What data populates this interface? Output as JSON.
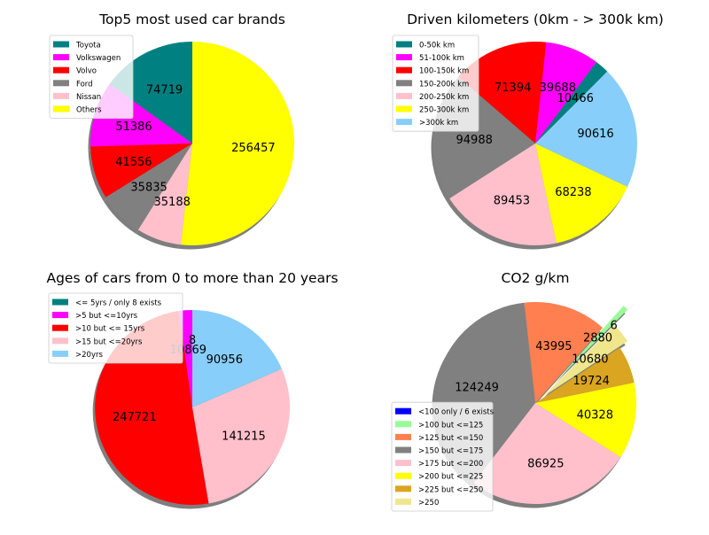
{
  "chart_data": [
    {
      "type": "pie",
      "title": "Top5 most used car brands",
      "categories": [
        "Toyota",
        "Volkswagen",
        "Volvo",
        "Ford",
        "Nissan",
        "Others"
      ],
      "values": [
        74719,
        51386,
        41556,
        35835,
        35188,
        256457
      ],
      "value_labels": [
        "74719",
        "51386",
        "41556",
        "35835",
        "35188",
        "256457"
      ],
      "colors": [
        "#008080",
        "#ff00ff",
        "#ff0000",
        "#808080",
        "#ffc0cb",
        "#ffff00"
      ],
      "start_angle_deg": 90,
      "shadow": true,
      "legend_position": "upper left"
    },
    {
      "type": "pie",
      "title": "Driven kilometers (0km - > 300k km)",
      "categories": [
        "0-50k km",
        "51-100k km",
        "100-150k km",
        "150-200k km",
        "200-250k km",
        "250-300k km",
        ">300k km"
      ],
      "values": [
        10466,
        39688,
        71394,
        94988,
        89453,
        68238,
        90616
      ],
      "value_labels": [
        "10466",
        "39688",
        "71394",
        "94988",
        "89453",
        "68238",
        "90616"
      ],
      "colors": [
        "#008080",
        "#ff00ff",
        "#ff0000",
        "#808080",
        "#ffc0cb",
        "#ffff00",
        "#87cefa"
      ],
      "start_angle_deg": 45,
      "shadow": true,
      "legend_position": "upper left"
    },
    {
      "type": "pie",
      "title": "Ages of cars from 0 to more than 20 years",
      "categories": [
        "<= 5yrs / only 8 exists",
        ">5 but <=10yrs",
        ">10 but <= 15yrs",
        ">15 but <=20yrs",
        ">20yrs"
      ],
      "values": [
        8,
        10869,
        247721,
        141215,
        90956
      ],
      "value_labels": [
        "8",
        "10869",
        "247721",
        "141215",
        "90956"
      ],
      "colors": [
        "#008080",
        "#ff00ff",
        "#ff0000",
        "#ffc0cb",
        "#87cefa"
      ],
      "start_angle_deg": 90,
      "explode": [
        0.1,
        0,
        0,
        0,
        0
      ],
      "shadow": true,
      "legend_position": "upper left"
    },
    {
      "type": "pie",
      "title": "CO2 g/km",
      "categories": [
        "<100 only / 6 exists",
        ">100 but <=125",
        ">125 but <=150",
        ">150 but <=175",
        ">175 but <=200",
        ">200 but <=225",
        ">225 but <=250",
        ">250"
      ],
      "values": [
        6,
        2880,
        43995,
        124249,
        86925,
        40328,
        19724,
        10680
      ],
      "value_labels": [
        "6",
        "2880",
        "43995",
        "124249",
        "86925",
        "40328",
        "19724",
        "10680"
      ],
      "colors": [
        "#0000ff",
        "#98fb98",
        "#ff7f50",
        "#808080",
        "#ffc0cb",
        "#ffff00",
        "#daa520",
        "#f0e68c"
      ],
      "start_angle_deg": 45,
      "explode": [
        0.5,
        0.3,
        0,
        0,
        0,
        0,
        0,
        0.1
      ],
      "shadow": true,
      "legend_position": "lower left"
    }
  ]
}
